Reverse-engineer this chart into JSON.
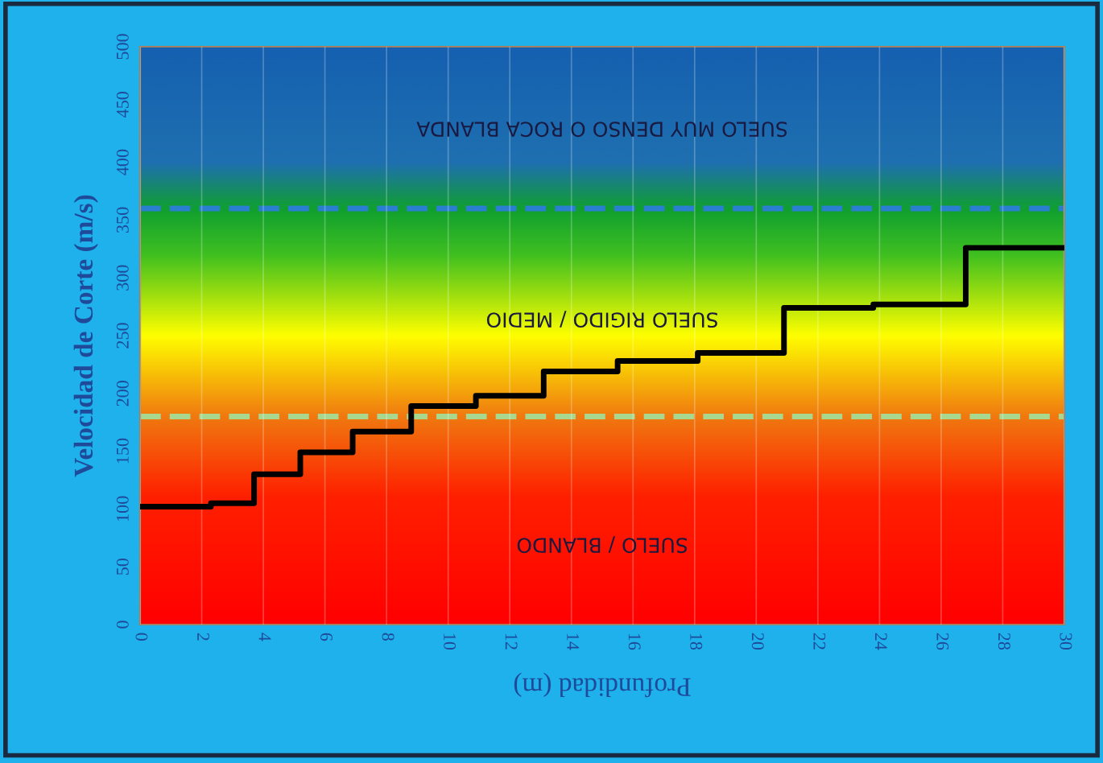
{
  "chart_data": {
    "type": "step",
    "xlabel": "Profundidad (m)",
    "ylabel": "Velocidad de Corte (m/s)",
    "x": [
      0,
      2.3,
      3.7,
      5.2,
      6.9,
      8.8,
      10.9,
      13.1,
      15.5,
      18.1,
      20.9,
      23.8,
      26.8,
      30
    ],
    "series": [
      {
        "color": "#000000",
        "values": [
          102,
          105,
          130,
          149,
          167,
          189,
          198,
          219,
          228,
          235,
          274,
          277,
          326,
          326
        ]
      }
    ],
    "xlim": [
      0,
      30
    ],
    "xticks": [
      0,
      2,
      4,
      6,
      8,
      10,
      12,
      14,
      16,
      18,
      20,
      22,
      24,
      26,
      28,
      30
    ],
    "ylim": [
      0,
      500
    ],
    "yticks": [
      0,
      50,
      100,
      150,
      200,
      250,
      300,
      350,
      400,
      450,
      500
    ],
    "grid": "x",
    "legend": false,
    "line_style": "solid",
    "marker": "none",
    "ref_lines": [
      {
        "axis": "y",
        "value": 360,
        "color": "#2a7fd0",
        "line_style": "dashed"
      },
      {
        "axis": "y",
        "value": 180,
        "color": "#a8d890",
        "line_style": "dashed"
      }
    ],
    "annotations": [
      "SUELO MUY DENSO O ROCA BLANDA",
      "SUELO RIGIDO / MEDIO",
      "SUELO / BLANDO"
    ]
  }
}
